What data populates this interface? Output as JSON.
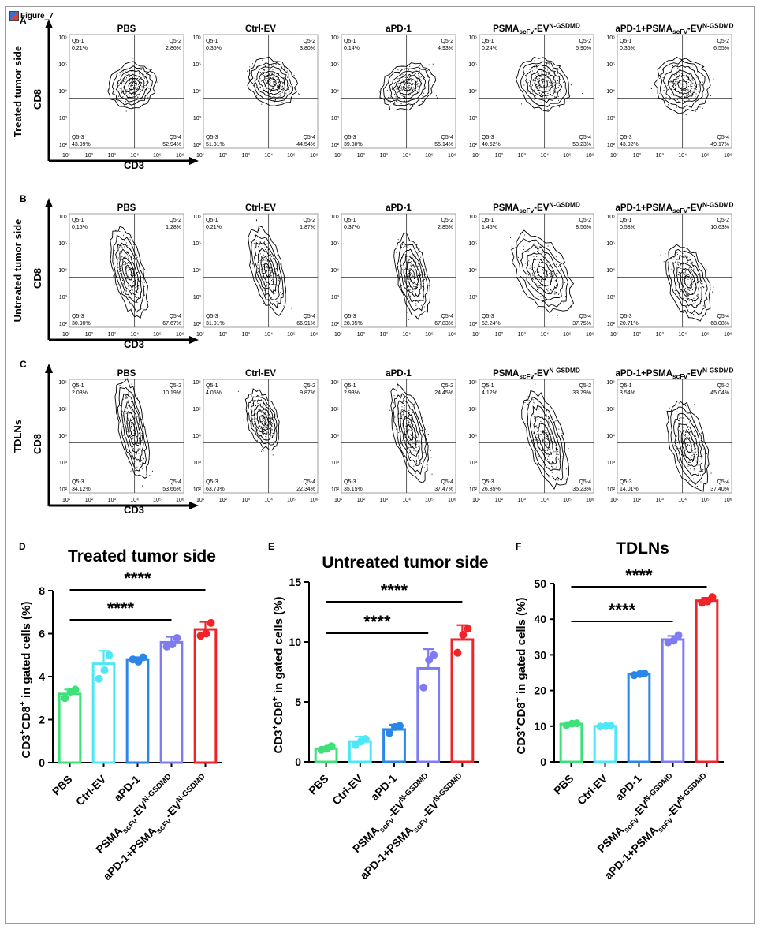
{
  "figure_label": "Figure_7",
  "panel_labels": [
    "A",
    "B",
    "C",
    "D",
    "E",
    "F"
  ],
  "flow_rows": [
    {
      "row_label": "Treated tumor side",
      "y_axis": "CD8",
      "x_axis": "CD3"
    },
    {
      "row_label": "Untreated tumor side",
      "y_axis": "CD8",
      "x_axis": "CD3"
    },
    {
      "row_label": "TDLNs",
      "y_axis": "CD8",
      "x_axis": "CD3"
    }
  ],
  "group_titles": [
    "PBS",
    "Ctrl-EV",
    "aPD-1",
    "PSMAscFv-EVN-GSDMD",
    "aPD-1+PSMAscFv-EVN-GSDMD"
  ],
  "quadrant_names": [
    "Q5-1",
    "Q5-2",
    "Q5-3",
    "Q5-4"
  ],
  "flow_ticks": {
    "x": [
      "10¹",
      "10²",
      "10³",
      "10⁴",
      "10⁵",
      "10⁶"
    ],
    "y": [
      "10²",
      "10³",
      "10⁴",
      "10⁵",
      "10⁶"
    ]
  },
  "quadrant_values": [
    [
      [
        "0.21%",
        "2.86%",
        "43.99%",
        "52.94%"
      ],
      [
        "0.35%",
        "3.80%",
        "51.31%",
        "44.54%"
      ],
      [
        "0.14%",
        "4.93%",
        "39.80%",
        "55.14%"
      ],
      [
        "0.24%",
        "5.90%",
        "40.62%",
        "53.23%"
      ],
      [
        "0.36%",
        "6.55%",
        "43.92%",
        "49.17%"
      ]
    ],
    [
      [
        "0.15%",
        "1.28%",
        "30.90%",
        "67.67%"
      ],
      [
        "0.21%",
        "1.87%",
        "31.01%",
        "66.91%"
      ],
      [
        "0.37%",
        "2.85%",
        "28.95%",
        "67.83%"
      ],
      [
        "1.45%",
        "8.56%",
        "52.24%",
        "37.75%"
      ],
      [
        "0.58%",
        "10.63%",
        "20.71%",
        "68.08%"
      ]
    ],
    [
      [
        "2.03%",
        "10.19%",
        "34.12%",
        "53.66%"
      ],
      [
        "4.05%",
        "9.87%",
        "63.73%",
        "22.34%"
      ],
      [
        "2.93%",
        "24.45%",
        "35.15%",
        "37.47%"
      ],
      [
        "4.12%",
        "33.79%",
        "26.85%",
        "35.23%"
      ],
      [
        "3.54%",
        "45.04%",
        "14.01%",
        "37.40%"
      ]
    ]
  ],
  "colors": {
    "PBS": "#3ee07a",
    "Ctrl-EV": "#4fe7f5",
    "aPD-1": "#2a86e8",
    "PSMA": "#7f7bf0",
    "Combo": "#f02428"
  },
  "chart_data": [
    {
      "type": "bar",
      "title": "Treated tumor side",
      "ylabel": "CD3+CD8+ in gated cells (%)",
      "categories": [
        "PBS",
        "Ctrl-EV",
        "aPD-1",
        "PSMAscFv-EVN-GSDMD",
        "aPD-1+PSMAscFv-EVN-GSDMD"
      ],
      "values": [
        3.2,
        4.6,
        4.8,
        5.6,
        6.2
      ],
      "error": [
        0.2,
        0.6,
        0.1,
        0.25,
        0.35
      ],
      "points": [
        [
          3.0,
          3.3,
          3.4
        ],
        [
          3.9,
          4.3,
          5.0
        ],
        [
          4.8,
          4.7,
          4.9
        ],
        [
          5.4,
          5.5,
          5.8
        ],
        [
          5.9,
          6.0,
          6.5
        ]
      ],
      "ylim": [
        0,
        8
      ],
      "yticks": [
        0,
        2,
        4,
        6,
        8
      ],
      "significance": [
        {
          "from": 0,
          "to": 3,
          "label": "****"
        },
        {
          "from": 0,
          "to": 4,
          "label": "****"
        }
      ]
    },
    {
      "type": "bar",
      "title": "Untreated tumor side",
      "ylabel": "CD3+CD8+ in gated cells (%)",
      "categories": [
        "PBS",
        "Ctrl-EV",
        "aPD-1",
        "PSMAscFv-EVN-GSDMD",
        "aPD-1+PSMAscFv-EVN-GSDMD"
      ],
      "values": [
        1.1,
        1.7,
        2.7,
        7.8,
        10.2
      ],
      "error": [
        0.15,
        0.4,
        0.4,
        1.6,
        1.2
      ],
      "points": [
        [
          1.0,
          1.1,
          1.3
        ],
        [
          1.4,
          1.7,
          1.9
        ],
        [
          2.4,
          2.9,
          3.0
        ],
        [
          6.2,
          8.5,
          8.9
        ],
        [
          9.1,
          10.6,
          11.1
        ]
      ],
      "ylim": [
        0,
        15
      ],
      "yticks": [
        0,
        5,
        10,
        15
      ],
      "significance": [
        {
          "from": 0,
          "to": 3,
          "label": "****"
        },
        {
          "from": 0,
          "to": 4,
          "label": "****"
        }
      ]
    },
    {
      "type": "bar",
      "title": "TDLNs",
      "ylabel": "CD3+CD8+ in gated cells (%)",
      "categories": [
        "PBS",
        "Ctrl-EV",
        "aPD-1",
        "PSMAscFv-EVN-GSDMD",
        "aPD-1+PSMAscFv-EVN-GSDMD"
      ],
      "values": [
        10.6,
        10.0,
        24.6,
        34.3,
        45.2
      ],
      "error": [
        0.3,
        0.3,
        0.3,
        1.0,
        0.8
      ],
      "points": [
        [
          10.3,
          10.7,
          10.8
        ],
        [
          9.9,
          10.0,
          10.1
        ],
        [
          24.3,
          24.6,
          24.8
        ],
        [
          33.5,
          34.0,
          35.5
        ],
        [
          44.6,
          45.0,
          46.2
        ]
      ],
      "ylim": [
        0,
        50
      ],
      "yticks": [
        0,
        10,
        20,
        30,
        40,
        50
      ],
      "significance": [
        {
          "from": 0,
          "to": 3,
          "label": "****"
        },
        {
          "from": 0,
          "to": 4,
          "label": "****"
        }
      ]
    }
  ]
}
